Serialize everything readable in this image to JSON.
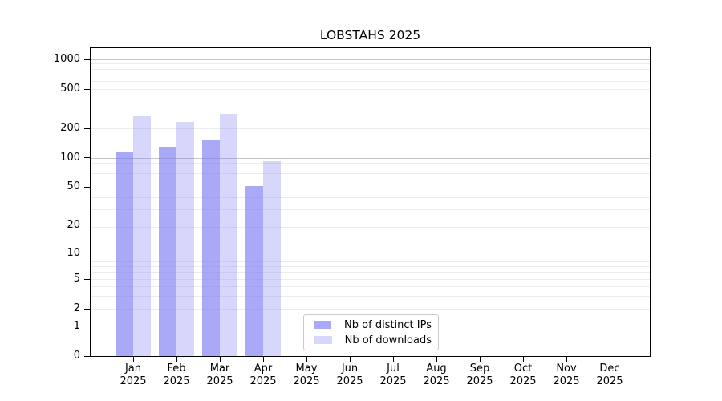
{
  "chart_data": {
    "type": "bar",
    "title": "LOBSTAHS 2025",
    "categories": [
      "Jan 2025",
      "Feb 2025",
      "Mar 2025",
      "Apr 2025",
      "May 2025",
      "Jun 2025",
      "Jul 2025",
      "Aug 2025",
      "Sep 2025",
      "Oct 2025",
      "Nov 2025",
      "Dec 2025"
    ],
    "series": [
      {
        "name": "Nb of distinct IPs",
        "color": "#7b7bf5",
        "alpha": 0.65,
        "values": [
          117,
          131,
          152,
          51,
          0,
          0,
          0,
          0,
          0,
          0,
          0,
          0
        ]
      },
      {
        "name": "Nb of downloads",
        "color": "#7b7bf5",
        "alpha": 0.3,
        "values": [
          265,
          233,
          280,
          93,
          0,
          0,
          0,
          0,
          0,
          0,
          0,
          0
        ]
      }
    ],
    "xlabel": "",
    "ylabel": "",
    "y_scale": "log10(value+1)",
    "y_ticks": [
      0,
      1,
      2,
      5,
      10,
      20,
      50,
      100,
      200,
      500,
      1000
    ],
    "ylim": [
      0,
      1300
    ],
    "grid": {
      "horizontal_major": true,
      "horizontal_minor": true,
      "vertical": false
    },
    "legend": {
      "location": "inside-bottom-center",
      "entries": [
        "Nb of distinct IPs",
        "Nb of downloads"
      ]
    }
  },
  "colors": {
    "bar_base": "#7b7bf5",
    "grid_major": "#c6c6c6",
    "grid_minor": "#ececec",
    "axis": "#000000",
    "legend_border": "#cbcbcb",
    "background": "#ffffff"
  }
}
